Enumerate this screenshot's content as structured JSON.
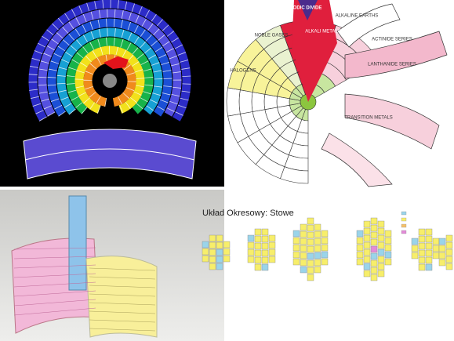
{
  "top_right": {
    "labels": [
      "PERIODIC DIVIDE",
      "NOBLE GASES",
      "ALKALI METALS",
      "HALOGENS",
      "ALKALINE EARTHS",
      "TRANSITION METALS",
      "LANTHANIDE SERIES",
      "ACTINIDE SERIES"
    ]
  },
  "bottom_right": {
    "title": "Układ Okresowy: Stowe"
  }
}
